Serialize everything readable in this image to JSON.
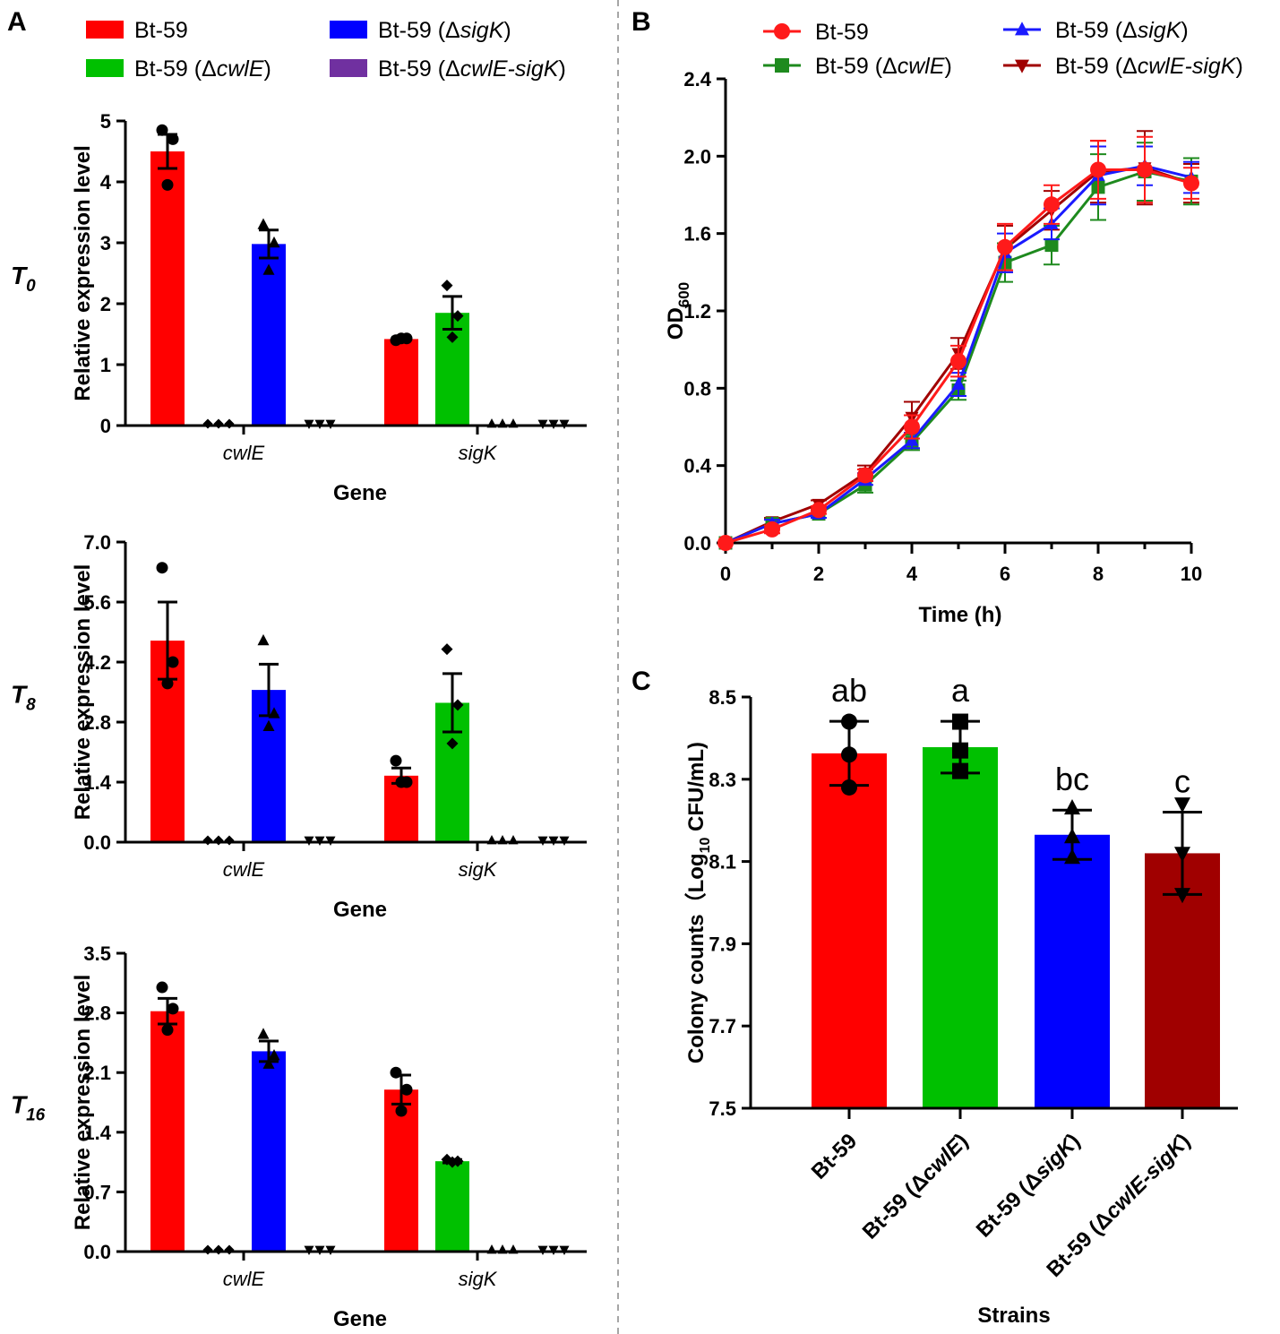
{
  "colors": {
    "bt59": "#ff0000",
    "cwlE": "#00c000",
    "sigK": "#0000ff",
    "dbl": "#7030a0",
    "bLineBt": "#ff1a1a",
    "bLineCwlE": "#1e8a1e",
    "bLineSigK": "#1a1aff",
    "bLineDbl": "#a00000",
    "cDbl": "#a00000"
  },
  "panels": {
    "a": "A",
    "b": "B",
    "c": "C"
  },
  "legendA": [
    {
      "prefix": "Bt-59",
      "open": "",
      "ital": "",
      "close": ""
    },
    {
      "prefix": "Bt-59 (Δ",
      "open": "",
      "ital": "sigK",
      "close": ")"
    },
    {
      "prefix": "Bt-59 (Δ",
      "open": "",
      "ital": "cwlE",
      "close": ")"
    },
    {
      "prefix": "Bt-59 (Δ",
      "open": "",
      "ital": "cwlE-sigK",
      "close": ")"
    }
  ],
  "legendB": [
    {
      "prefix": "Bt-59",
      "ital": "",
      "close": ""
    },
    {
      "prefix": "Bt-59 (Δ",
      "ital": "sigK",
      "close": ")"
    },
    {
      "prefix": "Bt-59 (Δ",
      "ital": "cwlE",
      "close": ")"
    },
    {
      "prefix": "Bt-59 (Δ",
      "ital": "cwlE-sigK",
      "close": ")"
    }
  ],
  "chart_data": [
    {
      "id": "A-T0",
      "type": "bar",
      "time_label": "T",
      "time_sub": "0",
      "xlabel": "Gene",
      "ylabel": "Relative expression level",
      "ylim": [
        0,
        5
      ],
      "yticks": [
        "0",
        "1",
        "2",
        "3",
        "4",
        "5"
      ],
      "categories": [
        "cwlE",
        "sigK"
      ],
      "series": [
        {
          "name": "Bt-59",
          "values": [
            4.5,
            1.42
          ],
          "errors": [
            0.28,
            0.03
          ],
          "points": [
            [
              4.85,
              4.7,
              3.95
            ],
            [
              1.4,
              1.43,
              1.43
            ]
          ],
          "marker": "circle"
        },
        {
          "name": "Bt-59 (ΔcwlE)",
          "values": [
            0,
            1.85
          ],
          "errors": [
            0,
            0.27
          ],
          "points": [
            [
              0,
              0,
              0
            ],
            [
              2.3,
              1.8,
              1.45
            ]
          ],
          "marker": "diamond"
        },
        {
          "name": "Bt-59 (ΔsigK)",
          "values": [
            2.98,
            0
          ],
          "errors": [
            0.23,
            0
          ],
          "points": [
            [
              3.3,
              3.0,
              2.55
            ],
            [
              0,
              0,
              0
            ]
          ],
          "marker": "triangle"
        },
        {
          "name": "Bt-59 (ΔcwlE-sigK)",
          "values": [
            0,
            0
          ],
          "errors": [
            0,
            0
          ],
          "points": [
            [
              0,
              0,
              0
            ],
            [
              0,
              0,
              0
            ]
          ],
          "marker": "tri-down"
        }
      ]
    },
    {
      "id": "A-T8",
      "type": "bar",
      "time_label": "T",
      "time_sub": "8",
      "xlabel": "Gene",
      "ylabel": "Relative expression level",
      "ylim": [
        0,
        7
      ],
      "yticks": [
        "0.0",
        "1.4",
        "2.8",
        "4.2",
        "5.6",
        "7.0"
      ],
      "categories": [
        "cwlE",
        "sigK"
      ],
      "series": [
        {
          "name": "Bt-59",
          "values": [
            4.7,
            1.55
          ],
          "errors": [
            0.9,
            0.18
          ],
          "points": [
            [
              6.4,
              4.2,
              3.7
            ],
            [
              1.9,
              1.4,
              1.4
            ]
          ],
          "marker": "circle"
        },
        {
          "name": "Bt-59 (ΔcwlE)",
          "values": [
            0,
            3.25
          ],
          "errors": [
            0,
            0.68
          ],
          "points": [
            [
              0,
              0,
              0
            ],
            [
              4.5,
              3.2,
              2.3
            ]
          ],
          "marker": "diamond"
        },
        {
          "name": "Bt-59 (ΔsigK)",
          "values": [
            3.55,
            0
          ],
          "errors": [
            0.6,
            0
          ],
          "points": [
            [
              4.7,
              3.0,
              2.7
            ],
            [
              0,
              0,
              0
            ]
          ],
          "marker": "triangle"
        },
        {
          "name": "Bt-59 (ΔcwlE-sigK)",
          "values": [
            0,
            0
          ],
          "errors": [
            0,
            0
          ],
          "points": [
            [
              0,
              0,
              0
            ],
            [
              0,
              0,
              0
            ]
          ],
          "marker": "tri-down"
        }
      ]
    },
    {
      "id": "A-T16",
      "type": "bar",
      "time_label": "T",
      "time_sub": "16",
      "xlabel": "Gene",
      "ylabel": "Relative expression level",
      "ylim": [
        0,
        3.5
      ],
      "yticks": [
        "0.0",
        "0.7",
        "1.4",
        "2.1",
        "2.8",
        "3.5"
      ],
      "categories": [
        "cwlE",
        "sigK"
      ],
      "series": [
        {
          "name": "Bt-59",
          "values": [
            2.82,
            1.9
          ],
          "errors": [
            0.15,
            0.17
          ],
          "points": [
            [
              3.1,
              2.85,
              2.6
            ],
            [
              2.1,
              1.9,
              1.65
            ]
          ],
          "marker": "circle"
        },
        {
          "name": "Bt-59 (ΔcwlE)",
          "values": [
            0,
            1.06
          ],
          "errors": [
            0,
            0.02
          ],
          "points": [
            [
              0,
              0,
              0
            ],
            [
              1.08,
              1.06,
              1.05
            ]
          ],
          "marker": "diamond"
        },
        {
          "name": "Bt-59 (ΔsigK)",
          "values": [
            2.35,
            0
          ],
          "errors": [
            0.12,
            0
          ],
          "points": [
            [
              2.55,
              2.3,
              2.2
            ],
            [
              0,
              0,
              0
            ]
          ],
          "marker": "triangle"
        },
        {
          "name": "Bt-59 (ΔcwlE-sigK)",
          "values": [
            0,
            0
          ],
          "errors": [
            0,
            0
          ],
          "points": [
            [
              0,
              0,
              0
            ],
            [
              0,
              0,
              0
            ]
          ],
          "marker": "tri-down"
        }
      ]
    },
    {
      "id": "B",
      "type": "line",
      "xlabel": "Time (h)",
      "ylabel": "OD",
      "ylabel_sub": "600",
      "xlim": [
        0,
        10
      ],
      "xticks": [
        "0",
        "2",
        "4",
        "6",
        "8",
        "10"
      ],
      "ylim": [
        0,
        2.4
      ],
      "yticks": [
        "0.0",
        "0.4",
        "0.8",
        "1.2",
        "1.6",
        "2.0",
        "2.4"
      ],
      "x": [
        0,
        1,
        2,
        3,
        4,
        5,
        6,
        7,
        8,
        9,
        10
      ],
      "series": [
        {
          "name": "Bt-59",
          "marker": "circle",
          "values": [
            0,
            0.07,
            0.17,
            0.35,
            0.6,
            0.94,
            1.53,
            1.75,
            1.93,
            1.93,
            1.86
          ],
          "errors": [
            0,
            0.02,
            0.02,
            0.03,
            0.06,
            0.08,
            0.12,
            0.1,
            0.15,
            0.17,
            0.08
          ]
        },
        {
          "name": "Bt-59 (ΔsigK)",
          "marker": "triangle",
          "values": [
            0,
            0.1,
            0.15,
            0.33,
            0.53,
            0.82,
            1.5,
            1.65,
            1.9,
            1.95,
            1.89
          ],
          "errors": [
            0,
            0.02,
            0.02,
            0.03,
            0.04,
            0.06,
            0.1,
            0.08,
            0.15,
            0.1,
            0.08
          ]
        },
        {
          "name": "Bt-59 (ΔcwlE)",
          "marker": "square",
          "values": [
            0,
            0.1,
            0.15,
            0.3,
            0.52,
            0.79,
            1.45,
            1.54,
            1.84,
            1.92,
            1.87
          ],
          "errors": [
            0,
            0.02,
            0.02,
            0.04,
            0.04,
            0.05,
            0.1,
            0.1,
            0.17,
            0.15,
            0.12
          ]
        },
        {
          "name": "Bt-59 (ΔcwlE-sigK)",
          "marker": "tri-down",
          "values": [
            0,
            0.11,
            0.2,
            0.36,
            0.65,
            0.98,
            1.52,
            1.72,
            1.92,
            1.94,
            1.86
          ],
          "errors": [
            0,
            0.02,
            0.02,
            0.04,
            0.08,
            0.08,
            0.12,
            0.1,
            0.16,
            0.19,
            0.1
          ]
        }
      ]
    },
    {
      "id": "C",
      "type": "bar",
      "xlabel": "Strains",
      "ylabel": "Colony counts（Log",
      "ylabel_sub": "10",
      "ylabel_tail": " CFU/mL)",
      "ylim": [
        7.5,
        8.5
      ],
      "yticks": [
        "7.5",
        "7.7",
        "7.9",
        "8.1",
        "8.3",
        "8.5"
      ],
      "categories": [
        {
          "prefix": "Bt-59",
          "ital": "",
          "close": ""
        },
        {
          "prefix": "Bt-59 (Δ",
          "ital": "cwlE",
          "close": ")"
        },
        {
          "prefix": "Bt-59 (Δ",
          "ital": "sigK",
          "close": ")"
        },
        {
          "prefix": "Bt-59 (Δ",
          "ital": "cwlE-sigK",
          "close": ")"
        }
      ],
      "values": [
        8.363,
        8.378,
        8.165,
        8.12
      ],
      "errors": [
        0.078,
        0.063,
        0.06,
        0.1
      ],
      "points": [
        [
          8.44,
          8.36,
          8.28
        ],
        [
          8.44,
          8.37,
          8.32
        ],
        [
          8.23,
          8.16,
          8.11
        ],
        [
          8.24,
          8.12,
          8.02
        ]
      ],
      "markers": [
        "circle",
        "square",
        "triangle",
        "tri-down"
      ],
      "letters": [
        "ab",
        "a",
        "bc",
        "c"
      ]
    }
  ]
}
